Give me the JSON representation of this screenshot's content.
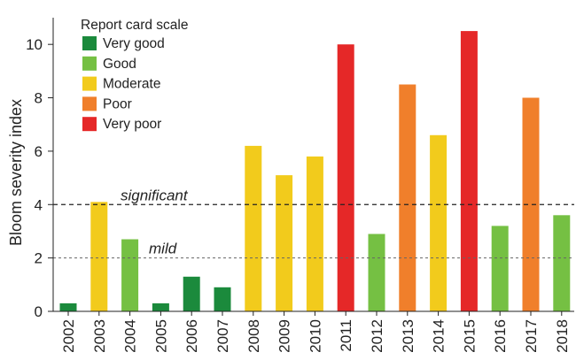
{
  "chart_data": {
    "type": "bar",
    "ylabel": "Bloom severity index",
    "ylim": [
      0,
      11
    ],
    "yticks": [
      0,
      2,
      4,
      6,
      8,
      10
    ],
    "categories": [
      "2002",
      "2003",
      "2004",
      "2005",
      "2006",
      "2007",
      "2008",
      "2009",
      "2010",
      "2011",
      "2012",
      "2013",
      "2014",
      "2015",
      "2016",
      "2017",
      "2018"
    ],
    "values": [
      0.3,
      4.1,
      2.7,
      0.3,
      1.3,
      0.9,
      6.2,
      5.1,
      5.8,
      10.0,
      2.9,
      8.5,
      6.6,
      10.5,
      3.2,
      8.0,
      3.6
    ],
    "ratings": [
      "very_good",
      "moderate",
      "good",
      "very_good",
      "very_good",
      "very_good",
      "moderate",
      "moderate",
      "moderate",
      "very_poor",
      "good",
      "poor",
      "moderate",
      "very_poor",
      "good",
      "poor",
      "good"
    ],
    "thresholds": [
      {
        "label": "significant",
        "value": 4
      },
      {
        "label": "mild",
        "value": 2
      }
    ],
    "legend": {
      "title": "Report card scale",
      "position": "top-left",
      "items": [
        {
          "key": "very_good",
          "label": "Very good",
          "color": "#1b8a3c"
        },
        {
          "key": "good",
          "label": "Good",
          "color": "#75c043"
        },
        {
          "key": "moderate",
          "label": "Moderate",
          "color": "#f2cb1c"
        },
        {
          "key": "poor",
          "label": "Poor",
          "color": "#f07f2b"
        },
        {
          "key": "very_poor",
          "label": "Very poor",
          "color": "#e52828"
        }
      ]
    },
    "grid": false
  }
}
